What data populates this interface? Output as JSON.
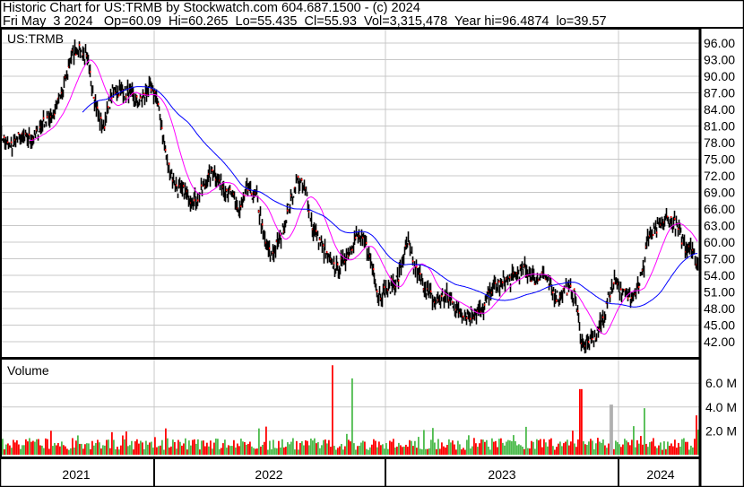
{
  "header": {
    "title": "Historic Chart for US:TRMB by Stockwatch.com 604.687.1500 - (c) 2024",
    "quote": "Fri May  3 2024   Op=60.09  Hi=60.265  Lo=55.435  Cl=55.93  Vol=3,315,478  Year hi=96.4874  lo=39.57"
  },
  "chart_data": {
    "type": "line",
    "symbol_label": "US:TRMB",
    "volume_label": "Volume",
    "price_axis": {
      "ticks": [
        "96.00",
        "93.00",
        "90.00",
        "87.00",
        "84.00",
        "81.00",
        "78.00",
        "75.00",
        "72.00",
        "69.00",
        "66.00",
        "63.00",
        "60.00",
        "57.00",
        "54.00",
        "51.00",
        "48.00",
        "45.00",
        "42.00"
      ],
      "ylim": [
        39,
        98
      ],
      "position": "right",
      "grid": true
    },
    "volume_axis": {
      "ticks": [
        "6.0 M",
        "4.0 M",
        "2.0 M"
      ],
      "tick_values": [
        6,
        4,
        2
      ],
      "ylim": [
        0,
        8
      ],
      "unit": "M"
    },
    "x_axis": {
      "labels": [
        "2021",
        "2022",
        "2023",
        "2024"
      ],
      "range": [
        "2021-05-01",
        "2024-05-03"
      ]
    },
    "colors": {
      "price": "#000000",
      "close_tick": "#ff0000",
      "ma_short": "#ff00ff",
      "ma_long": "#0000ff",
      "vol_up": "#4cbb4c",
      "vol_down": "#ff0000",
      "grid": "#c8c8c8"
    },
    "price_series": [
      [
        "2021-05-01",
        79.5
      ],
      [
        "2021-05-15",
        77
      ],
      [
        "2021-05-29",
        78.7
      ],
      [
        "2021-06-20",
        78.7
      ],
      [
        "2021-07-11",
        82
      ],
      [
        "2021-07-25",
        83.5
      ],
      [
        "2021-08-08",
        87.5
      ],
      [
        "2021-08-22",
        94
      ],
      [
        "2021-08-29",
        95
      ],
      [
        "2021-09-12",
        93.7
      ],
      [
        "2021-09-20",
        90
      ],
      [
        "2021-10-04",
        82
      ],
      [
        "2021-10-11",
        81
      ],
      [
        "2021-10-25",
        87.5
      ],
      [
        "2021-11-08",
        87.5
      ],
      [
        "2021-11-22",
        86.8
      ],
      [
        "2021-12-06",
        85
      ],
      [
        "2021-12-20",
        87.5
      ],
      [
        "2022-01-01",
        86.8
      ],
      [
        "2022-01-09",
        82
      ],
      [
        "2022-01-19",
        74.6
      ],
      [
        "2022-02-03",
        69.7
      ],
      [
        "2022-02-17",
        69
      ],
      [
        "2022-03-03",
        67.3
      ],
      [
        "2022-03-17",
        69.7
      ],
      [
        "2022-03-31",
        73
      ],
      [
        "2022-04-14",
        70.5
      ],
      [
        "2022-04-28",
        69
      ],
      [
        "2022-05-13",
        65.7
      ],
      [
        "2022-05-27",
        69.7
      ],
      [
        "2022-06-10",
        68
      ],
      [
        "2022-06-20",
        61
      ],
      [
        "2022-07-01",
        57.6
      ],
      [
        "2022-07-15",
        60
      ],
      [
        "2022-07-27",
        65
      ],
      [
        "2022-08-13",
        71.4
      ],
      [
        "2022-08-27",
        69
      ],
      [
        "2022-09-06",
        62.5
      ],
      [
        "2022-09-17",
        60
      ],
      [
        "2022-10-01",
        56.8
      ],
      [
        "2022-10-15",
        55
      ],
      [
        "2022-10-29",
        57.6
      ],
      [
        "2022-11-13",
        61
      ],
      [
        "2022-11-27",
        60
      ],
      [
        "2022-12-11",
        55
      ],
      [
        "2022-12-18",
        50.3
      ],
      [
        "2023-01-01",
        51.4
      ],
      [
        "2023-01-19",
        53.5
      ],
      [
        "2023-02-03",
        60
      ],
      [
        "2023-02-12",
        55.6
      ],
      [
        "2023-03-03",
        51.9
      ],
      [
        "2023-03-17",
        49.2
      ],
      [
        "2023-04-06",
        50.3
      ],
      [
        "2023-04-24",
        47.5
      ],
      [
        "2023-05-13",
        47
      ],
      [
        "2023-06-01",
        47.5
      ],
      [
        "2023-06-16",
        51.9
      ],
      [
        "2023-06-30",
        52.4
      ],
      [
        "2023-07-18",
        53.5
      ],
      [
        "2023-08-06",
        55.2
      ],
      [
        "2023-08-25",
        53
      ],
      [
        "2023-09-03",
        54.7
      ],
      [
        "2023-09-17",
        51.4
      ],
      [
        "2023-10-01",
        49.8
      ],
      [
        "2023-10-11",
        51.9
      ],
      [
        "2023-10-25",
        50.3
      ],
      [
        "2023-10-29",
        47
      ],
      [
        "2023-11-05",
        41.7
      ],
      [
        "2023-11-18",
        41.7
      ],
      [
        "2023-12-02",
        44.3
      ],
      [
        "2023-12-11",
        47
      ],
      [
        "2023-12-21",
        51.9
      ],
      [
        "2023-12-31",
        53.5
      ],
      [
        "2024-01-04",
        50.8
      ],
      [
        "2024-01-18",
        50.3
      ],
      [
        "2024-02-01",
        51.9
      ],
      [
        "2024-02-11",
        55.6
      ],
      [
        "2024-02-15",
        60.5
      ],
      [
        "2024-02-25",
        61.6
      ],
      [
        "2024-03-10",
        63.3
      ],
      [
        "2024-03-21",
        64.4
      ],
      [
        "2024-04-03",
        62.8
      ],
      [
        "2024-04-17",
        58.9
      ],
      [
        "2024-04-25",
        60
      ],
      [
        "2024-05-03",
        55.93
      ]
    ],
    "volume_spikes": [
      [
        "2022-10-07",
        7.5,
        "down"
      ],
      [
        "2022-11-06",
        6.4,
        "up"
      ],
      [
        "2023-11-02",
        5.5,
        "down"
      ],
      [
        "2023-12-21",
        4.2,
        "flat"
      ],
      [
        "2024-02-11",
        3.9,
        "up"
      ],
      [
        "2024-05-03",
        3.3,
        "down"
      ]
    ]
  }
}
